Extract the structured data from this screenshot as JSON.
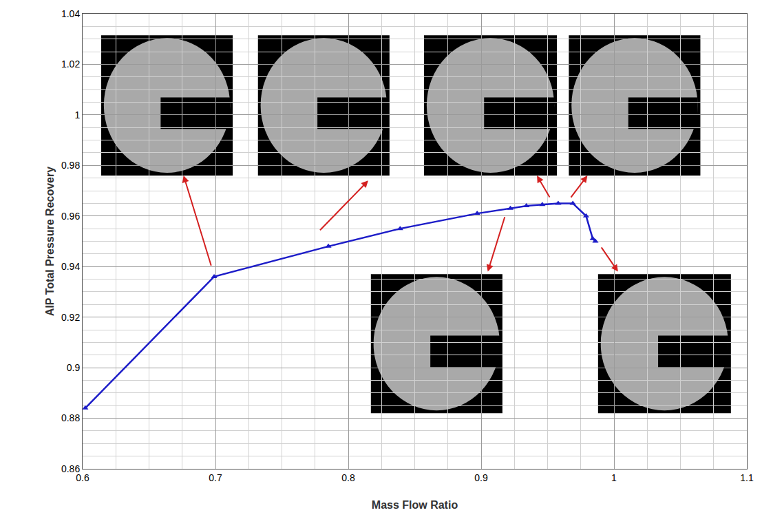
{
  "chart_data": {
    "type": "line",
    "x_label": "Mass Flow Ratio",
    "y_label": "AIP Total Pressure Recovery",
    "x": [
      0.602,
      0.699,
      0.785,
      0.839,
      0.897,
      0.922,
      0.934,
      0.946,
      0.958,
      0.969,
      0.979,
      0.984,
      0.986
    ],
    "values": [
      0.884,
      0.936,
      0.948,
      0.955,
      0.961,
      0.963,
      0.964,
      0.9645,
      0.965,
      0.965,
      0.96,
      0.951,
      0.95
    ],
    "color": "#1c1cc8",
    "marker": "triangle-up",
    "xlim": [
      0.6,
      1.1
    ],
    "ylim": [
      0.86,
      1.04
    ],
    "xticks": [
      0.6,
      0.7,
      0.8,
      0.9,
      1,
      1.1
    ],
    "yticks": [
      0.86,
      0.88,
      0.9,
      0.92,
      0.94,
      0.96,
      0.98,
      1,
      1.02,
      1.04
    ],
    "grid": true
  }
}
